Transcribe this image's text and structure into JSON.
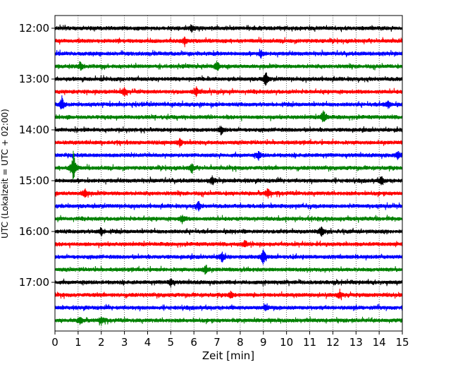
{
  "chart_data": {
    "type": "line",
    "subtype": "helicorder",
    "title": "",
    "xlabel": "Zeit  [min]",
    "ylabel": "UTC (Lokalzeit = UTC + 02:00)",
    "xlim": [
      0,
      15
    ],
    "x_ticks": [
      "0",
      "1",
      "2",
      "3",
      "4",
      "5",
      "6",
      "7",
      "8",
      "9",
      "10",
      "11",
      "12",
      "13",
      "14",
      "15"
    ],
    "y_tick_labels": [
      "12:00",
      "13:00",
      "14:00",
      "15:00",
      "16:00",
      "17:00"
    ],
    "minutes_per_line": 15,
    "start_time": "12:00",
    "line_count": 24,
    "line_colors": [
      "#000000",
      "#ff0000",
      "#0000ff",
      "#008000"
    ],
    "vertical_grid": true,
    "grid_style": "dotted",
    "events": [
      {
        "line": 0,
        "x": 5.9,
        "amp": 0.3
      },
      {
        "line": 1,
        "x": 5.6,
        "amp": 0.25
      },
      {
        "line": 2,
        "x": 8.9,
        "amp": 0.28
      },
      {
        "line": 3,
        "x": 7.0,
        "amp": 0.4
      },
      {
        "line": 3,
        "x": 1.1,
        "amp": 0.25
      },
      {
        "line": 4,
        "x": 9.1,
        "amp": 0.5
      },
      {
        "line": 5,
        "x": 3.0,
        "amp": 0.3
      },
      {
        "line": 5,
        "x": 6.1,
        "amp": 0.35
      },
      {
        "line": 6,
        "x": 0.3,
        "amp": 0.55
      },
      {
        "line": 6,
        "x": 14.4,
        "amp": 0.3
      },
      {
        "line": 7,
        "x": 11.6,
        "amp": 0.6
      },
      {
        "line": 8,
        "x": 7.2,
        "amp": 0.3
      },
      {
        "line": 9,
        "x": 5.4,
        "amp": 0.28
      },
      {
        "line": 10,
        "x": 8.8,
        "amp": 0.3
      },
      {
        "line": 10,
        "x": 14.8,
        "amp": 0.28
      },
      {
        "line": 11,
        "x": 0.8,
        "amp": 1.4
      },
      {
        "line": 11,
        "x": 5.9,
        "amp": 0.35
      },
      {
        "line": 12,
        "x": 6.8,
        "amp": 0.3
      },
      {
        "line": 12,
        "x": 14.1,
        "amp": 0.32
      },
      {
        "line": 13,
        "x": 1.3,
        "amp": 0.4
      },
      {
        "line": 13,
        "x": 9.2,
        "amp": 0.4
      },
      {
        "line": 14,
        "x": 6.2,
        "amp": 0.35
      },
      {
        "line": 15,
        "x": 5.5,
        "amp": 0.35
      },
      {
        "line": 16,
        "x": 11.5,
        "amp": 0.4
      },
      {
        "line": 16,
        "x": 2.0,
        "amp": 0.3
      },
      {
        "line": 17,
        "x": 8.2,
        "amp": 0.3
      },
      {
        "line": 18,
        "x": 9.0,
        "amp": 0.65
      },
      {
        "line": 18,
        "x": 7.2,
        "amp": 0.4
      },
      {
        "line": 19,
        "x": 6.5,
        "amp": 0.4
      },
      {
        "line": 20,
        "x": 5.0,
        "amp": 0.28
      },
      {
        "line": 21,
        "x": 12.3,
        "amp": 0.32
      },
      {
        "line": 21,
        "x": 7.6,
        "amp": 0.28
      },
      {
        "line": 22,
        "x": 9.1,
        "amp": 0.22
      },
      {
        "line": 23,
        "x": 2.0,
        "amp": 0.35
      },
      {
        "line": 23,
        "x": 1.1,
        "amp": 0.28
      }
    ]
  }
}
